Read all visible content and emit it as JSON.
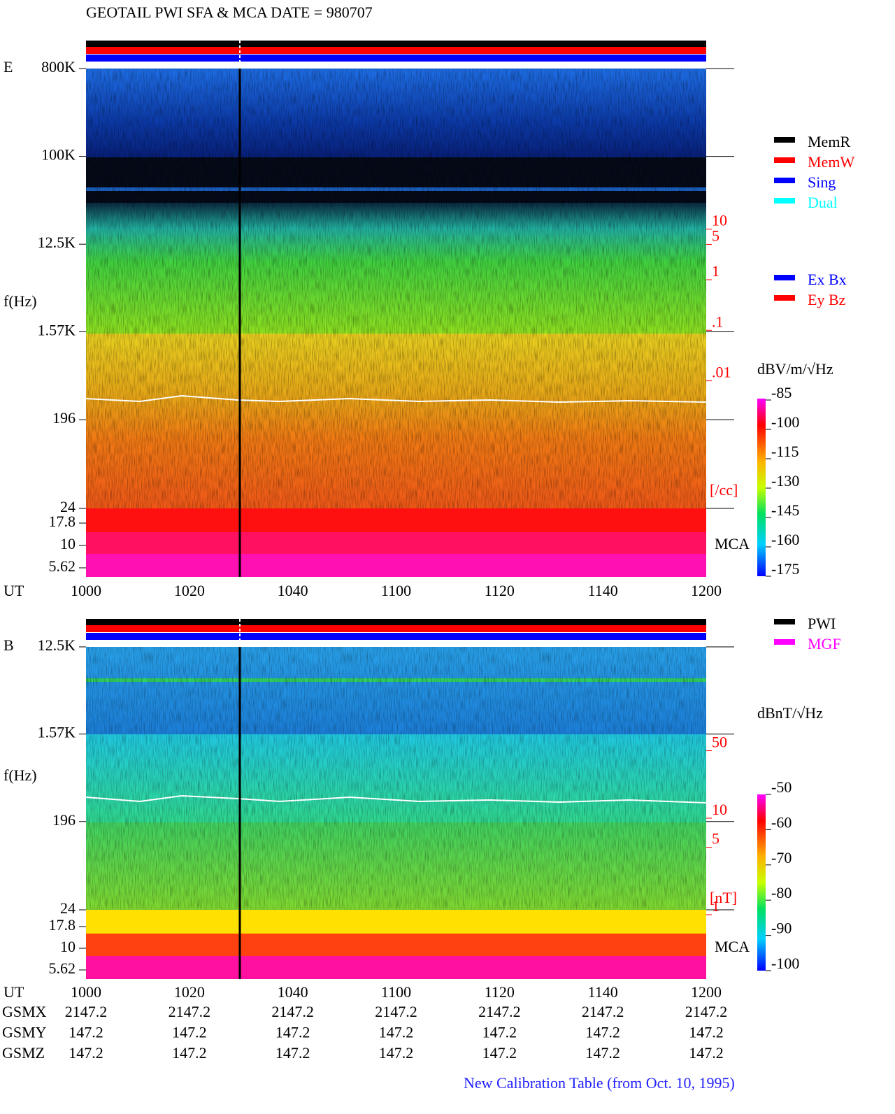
{
  "title": "GEOTAIL  PWI SFA & MCA    DATE = 980707",
  "footer": "New Calibration Table (from Oct. 10, 1995)",
  "legend_memory": [
    {
      "name": "MemR",
      "color": "#000000"
    },
    {
      "name": "MemW",
      "color": "#ff0000"
    },
    {
      "name": "Sing",
      "color": "#0000ff"
    },
    {
      "name": "Dual",
      "color": "#00ffff"
    }
  ],
  "legend_components": [
    {
      "name": "Ex Bx",
      "color": "#0000ff"
    },
    {
      "name": "Ey Bz",
      "color": "#ff0000"
    }
  ],
  "legend_source": [
    {
      "name": "PWI",
      "color": "#000000"
    },
    {
      "name": "MGF",
      "color": "#ff00ff"
    }
  ],
  "chart_data": [
    {
      "type": "spectrogram",
      "panel_label": "E",
      "y_label": "f(Hz)",
      "x_label": "UT",
      "categories": [
        "1000",
        "1020",
        "1040",
        "1100",
        "1120",
        "1140",
        "1200"
      ],
      "log_scale": true,
      "ylim": [
        24,
        800000
      ],
      "mca_ylim": [
        5.62,
        17.8
      ],
      "yticks": [
        {
          "value": 800000,
          "label": "800K"
        },
        {
          "value": 100000,
          "label": "100K"
        },
        {
          "value": 12500,
          "label": "12.5K"
        },
        {
          "value": 1570,
          "label": "1.57K"
        },
        196,
        24,
        17.8,
        10,
        5.62
      ],
      "mca_label": "MCA",
      "density_ticks": [
        10,
        5,
        1,
        {
          "value": 0.1,
          "label": ".1"
        },
        {
          "value": 0.01,
          "label": ".01"
        }
      ],
      "density_unit": "[/cc]",
      "colorbar_label": "dBV/m/√Hz",
      "colorbar_lim": [
        -175,
        -85
      ],
      "colorbar_ticks": [
        -85,
        -100,
        -115,
        -130,
        -145,
        -160,
        -175
      ]
    },
    {
      "type": "spectrogram",
      "panel_label": "B",
      "y_label": "f(Hz)",
      "x_label": "UT",
      "categories": [
        "1000",
        "1020",
        "1040",
        "1100",
        "1120",
        "1140",
        "1200"
      ],
      "log_scale": true,
      "ylim": [
        24,
        12500
      ],
      "mca_ylim": [
        5.62,
        17.8
      ],
      "yticks": [
        {
          "value": 12500,
          "label": "12.5K"
        },
        {
          "value": 1570,
          "label": "1.57K"
        },
        196,
        24,
        17.8,
        10,
        5.62
      ],
      "mca_label": "MCA",
      "density_ticks": [
        50,
        10,
        5,
        1
      ],
      "density_unit": "[nT]",
      "colorbar_label": "dBnT/√Hz",
      "colorbar_lim": [
        -100,
        -50
      ],
      "colorbar_ticks": [
        -50,
        -60,
        -70,
        -80,
        -90,
        -100
      ]
    }
  ],
  "orbit": {
    "rows": [
      {
        "label": "GSMX",
        "values": [
          2147.2,
          2147.2,
          2147.2,
          2147.2,
          2147.2,
          2147.2,
          2147.2
        ]
      },
      {
        "label": "GSMY",
        "values": [
          147.2,
          147.2,
          147.2,
          147.2,
          147.2,
          147.2,
          147.2
        ]
      },
      {
        "label": "GSMZ",
        "values": [
          147.2,
          147.2,
          147.2,
          147.2,
          147.2,
          147.2,
          147.2
        ]
      }
    ]
  }
}
